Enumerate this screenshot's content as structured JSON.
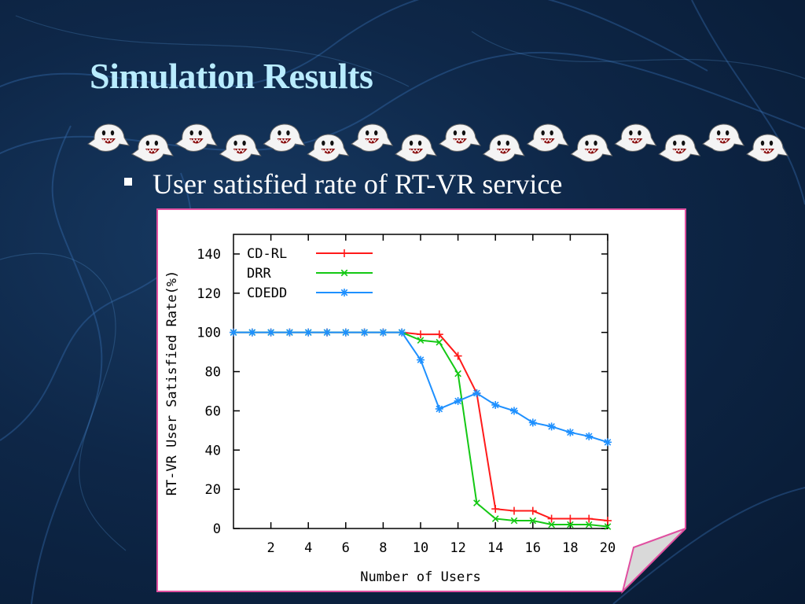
{
  "slide": {
    "title": "Simulation Results",
    "bullet": "User satisfied rate of RT-VR service"
  },
  "decoration": {
    "icon": "boo-ghost-icon",
    "count": 16
  },
  "chart_data": {
    "type": "line",
    "xlabel": "Number of Users",
    "ylabel": "RT-VR User Satisfied Rate(%)",
    "xlim": [
      0,
      20
    ],
    "ylim": [
      0,
      150
    ],
    "xticks": [
      2,
      4,
      6,
      8,
      10,
      12,
      14,
      16,
      18,
      20
    ],
    "yticks": [
      0,
      20,
      40,
      60,
      80,
      100,
      120,
      140
    ],
    "grid": false,
    "legend": "top-left",
    "x": [
      0,
      1,
      2,
      3,
      4,
      5,
      6,
      7,
      8,
      9,
      10,
      11,
      12,
      13,
      14,
      15,
      16,
      17,
      18,
      19,
      20
    ],
    "series": [
      {
        "name": "CD-RL",
        "color": "#ff1a1a",
        "marker": "plus",
        "values": [
          100,
          100,
          100,
          100,
          100,
          100,
          100,
          100,
          100,
          100,
          99,
          99,
          88,
          69,
          10,
          9,
          9,
          5,
          5,
          5,
          4
        ]
      },
      {
        "name": "DRR",
        "color": "#14c814",
        "marker": "x",
        "values": [
          100,
          100,
          100,
          100,
          100,
          100,
          100,
          100,
          100,
          100,
          96,
          95,
          79,
          13,
          5,
          4,
          4,
          2,
          2,
          2,
          1
        ]
      },
      {
        "name": "CDEDD",
        "color": "#1e90ff",
        "marker": "star",
        "values": [
          100,
          100,
          100,
          100,
          100,
          100,
          100,
          100,
          100,
          100,
          86,
          61,
          65,
          69,
          63,
          60,
          54,
          52,
          49,
          47,
          44
        ]
      }
    ]
  }
}
